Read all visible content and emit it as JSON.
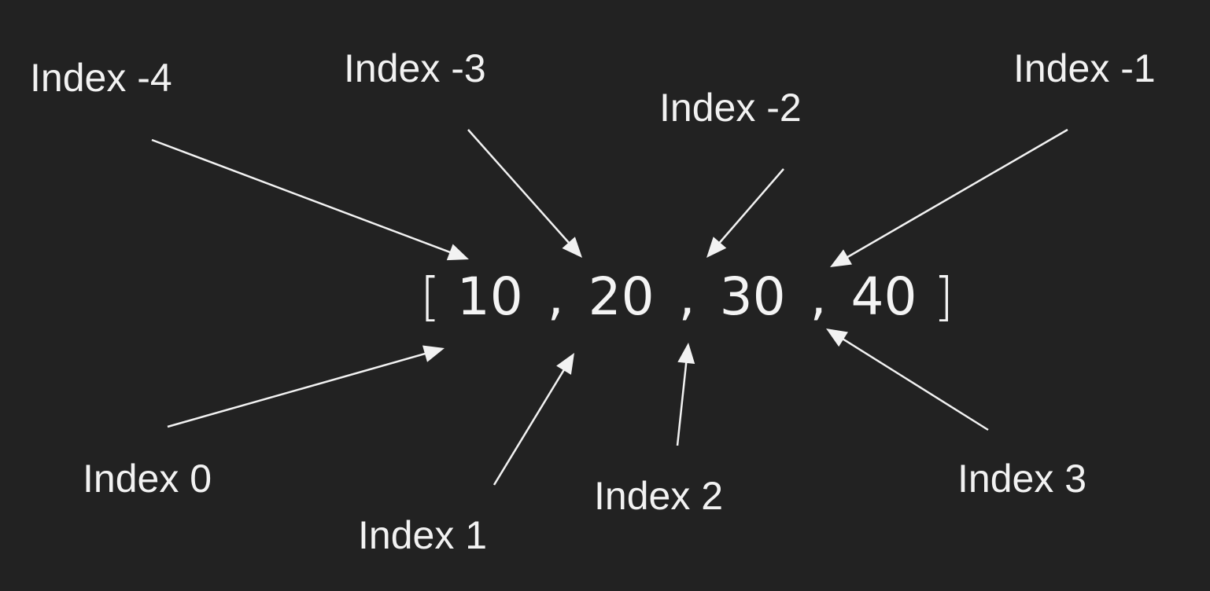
{
  "labels": {
    "neg4": "Index -4",
    "neg3": "Index -3",
    "neg2": "Index -2",
    "neg1": "Index -1",
    "pos0": "Index 0",
    "pos1": "Index 1",
    "pos2": "Index 2",
    "pos3": "Index 3"
  },
  "list": {
    "open_bracket": "[",
    "close_bracket": "]",
    "separator": ",",
    "values": [
      "10",
      "20",
      "30",
      "40"
    ]
  },
  "colors": {
    "background": "#222222",
    "foreground": "#f2f2f2"
  }
}
